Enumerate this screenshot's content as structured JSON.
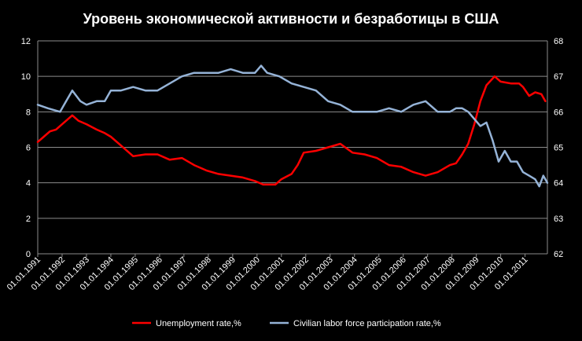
{
  "chart_data": {
    "type": "line",
    "title": "Уровень экономической активности и безработицы в США",
    "background": "#000000",
    "grid": true,
    "legend_position": "bottom",
    "x_tick_labels": [
      "01.01.1991",
      "01.01.1992",
      "01.01.1993",
      "01.01.1994",
      "01.01.1995",
      "01.01.1996",
      "01.01.1997",
      "01.01.1998",
      "01.01.1999",
      "01.01.2000",
      "01.01.2001",
      "01.01.2002",
      "01.01.2003",
      "01.01.2004",
      "01.01.2005",
      "01.01.2006",
      "01.01.2007",
      "01.01.2008",
      "01.01.2009",
      "01.01.2010",
      "01.01.2011"
    ],
    "xlim": [
      "1991-01",
      "2011-12"
    ],
    "y_left": {
      "ylim": [
        0,
        12
      ],
      "ticks": [
        "0",
        "2",
        "4",
        "6",
        "8",
        "10",
        "12"
      ]
    },
    "y_right": {
      "ylim": [
        62,
        68
      ],
      "ticks": [
        "62",
        "63",
        "64",
        "65",
        "66",
        "67",
        "68"
      ]
    },
    "series": [
      {
        "name": "Unemployment rate,%",
        "axis": "left",
        "color": "#ff0000",
        "points": [
          [
            "1991-01",
            6.3
          ],
          [
            "1991-04",
            6.6
          ],
          [
            "1991-07",
            6.9
          ],
          [
            "1991-10",
            7.0
          ],
          [
            "1992-01",
            7.3
          ],
          [
            "1992-06",
            7.8
          ],
          [
            "1992-09",
            7.5
          ],
          [
            "1993-01",
            7.3
          ],
          [
            "1993-06",
            7.0
          ],
          [
            "1993-10",
            6.8
          ],
          [
            "1994-01",
            6.6
          ],
          [
            "1994-06",
            6.1
          ],
          [
            "1994-12",
            5.5
          ],
          [
            "1995-06",
            5.6
          ],
          [
            "1995-12",
            5.6
          ],
          [
            "1996-06",
            5.3
          ],
          [
            "1996-12",
            5.4
          ],
          [
            "1997-06",
            5.0
          ],
          [
            "1997-12",
            4.7
          ],
          [
            "1998-06",
            4.5
          ],
          [
            "1998-12",
            4.4
          ],
          [
            "1999-06",
            4.3
          ],
          [
            "1999-12",
            4.1
          ],
          [
            "2000-04",
            3.9
          ],
          [
            "2000-10",
            3.9
          ],
          [
            "2001-01",
            4.2
          ],
          [
            "2001-06",
            4.5
          ],
          [
            "2001-09",
            5.0
          ],
          [
            "2001-12",
            5.7
          ],
          [
            "2002-06",
            5.8
          ],
          [
            "2002-12",
            6.0
          ],
          [
            "2003-06",
            6.2
          ],
          [
            "2003-12",
            5.7
          ],
          [
            "2004-06",
            5.6
          ],
          [
            "2004-12",
            5.4
          ],
          [
            "2005-06",
            5.0
          ],
          [
            "2005-12",
            4.9
          ],
          [
            "2006-06",
            4.6
          ],
          [
            "2006-12",
            4.4
          ],
          [
            "2007-06",
            4.6
          ],
          [
            "2007-12",
            5.0
          ],
          [
            "2008-03",
            5.1
          ],
          [
            "2008-06",
            5.6
          ],
          [
            "2008-09",
            6.2
          ],
          [
            "2008-12",
            7.3
          ],
          [
            "2009-03",
            8.6
          ],
          [
            "2009-06",
            9.5
          ],
          [
            "2009-10",
            10.0
          ],
          [
            "2010-01",
            9.7
          ],
          [
            "2010-06",
            9.6
          ],
          [
            "2010-10",
            9.6
          ],
          [
            "2010-12",
            9.4
          ],
          [
            "2011-03",
            8.9
          ],
          [
            "2011-06",
            9.1
          ],
          [
            "2011-09",
            9.0
          ],
          [
            "2011-11",
            8.6
          ]
        ]
      },
      {
        "name": "Civilian labor force participation rate,%",
        "axis": "right",
        "color": "#95b3d7",
        "points": [
          [
            "1991-01",
            66.2
          ],
          [
            "1991-06",
            66.1
          ],
          [
            "1991-12",
            66.0
          ],
          [
            "1992-03",
            66.3
          ],
          [
            "1992-06",
            66.6
          ],
          [
            "1992-10",
            66.3
          ],
          [
            "1993-01",
            66.2
          ],
          [
            "1993-06",
            66.3
          ],
          [
            "1993-10",
            66.3
          ],
          [
            "1994-01",
            66.6
          ],
          [
            "1994-06",
            66.6
          ],
          [
            "1994-12",
            66.7
          ],
          [
            "1995-06",
            66.6
          ],
          [
            "1995-12",
            66.6
          ],
          [
            "1996-06",
            66.8
          ],
          [
            "1996-12",
            67.0
          ],
          [
            "1997-06",
            67.1
          ],
          [
            "1997-12",
            67.1
          ],
          [
            "1998-06",
            67.1
          ],
          [
            "1998-12",
            67.2
          ],
          [
            "1999-06",
            67.1
          ],
          [
            "1999-12",
            67.1
          ],
          [
            "2000-03",
            67.3
          ],
          [
            "2000-06",
            67.1
          ],
          [
            "2000-12",
            67.0
          ],
          [
            "2001-06",
            66.8
          ],
          [
            "2001-12",
            66.7
          ],
          [
            "2002-06",
            66.6
          ],
          [
            "2002-12",
            66.3
          ],
          [
            "2003-06",
            66.2
          ],
          [
            "2003-12",
            66.0
          ],
          [
            "2004-06",
            66.0
          ],
          [
            "2004-12",
            66.0
          ],
          [
            "2005-06",
            66.1
          ],
          [
            "2005-12",
            66.0
          ],
          [
            "2006-06",
            66.2
          ],
          [
            "2006-12",
            66.3
          ],
          [
            "2007-06",
            66.0
          ],
          [
            "2007-12",
            66.0
          ],
          [
            "2008-03",
            66.1
          ],
          [
            "2008-06",
            66.1
          ],
          [
            "2008-09",
            66.0
          ],
          [
            "2008-12",
            65.8
          ],
          [
            "2009-03",
            65.6
          ],
          [
            "2009-06",
            65.7
          ],
          [
            "2009-09",
            65.2
          ],
          [
            "2009-12",
            64.6
          ],
          [
            "2010-03",
            64.9
          ],
          [
            "2010-06",
            64.6
          ],
          [
            "2010-09",
            64.6
          ],
          [
            "2010-12",
            64.3
          ],
          [
            "2011-03",
            64.2
          ],
          [
            "2011-06",
            64.1
          ],
          [
            "2011-08",
            63.9
          ],
          [
            "2011-10",
            64.2
          ],
          [
            "2011-12",
            64.0
          ]
        ]
      }
    ]
  }
}
